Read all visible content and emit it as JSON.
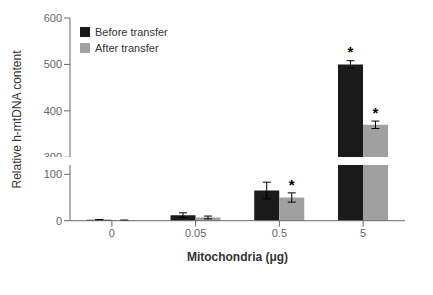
{
  "chart_data": {
    "type": "bar",
    "categories": [
      "0",
      "0.05",
      "0.5",
      "5"
    ],
    "series": [
      {
        "name": "Before transfer",
        "color": "#1a1a1a",
        "values": [
          2,
          12,
          65,
          500
        ],
        "errors": [
          0.5,
          5,
          18,
          8
        ]
      },
      {
        "name": "After transfer",
        "color": "#a0a0a0",
        "values": [
          1,
          7,
          50,
          370
        ],
        "errors": [
          0.3,
          3,
          10,
          8
        ]
      }
    ],
    "xlabel": "Mitochondria (μg)",
    "ylabel": "Relative h-mtDNA content",
    "ylim": [
      [
        0,
        120
      ],
      [
        300,
        600
      ]
    ],
    "yticks": [
      [
        0,
        100
      ],
      [
        300,
        400,
        500,
        600
      ]
    ],
    "legend": "upper left",
    "grid": false,
    "annotations": [
      {
        "text": "*",
        "series": "Before transfer",
        "category": "5"
      },
      {
        "text": "*",
        "series": "After transfer",
        "category": "0.5"
      },
      {
        "text": "*",
        "series": "After transfer",
        "category": "5"
      }
    ]
  }
}
